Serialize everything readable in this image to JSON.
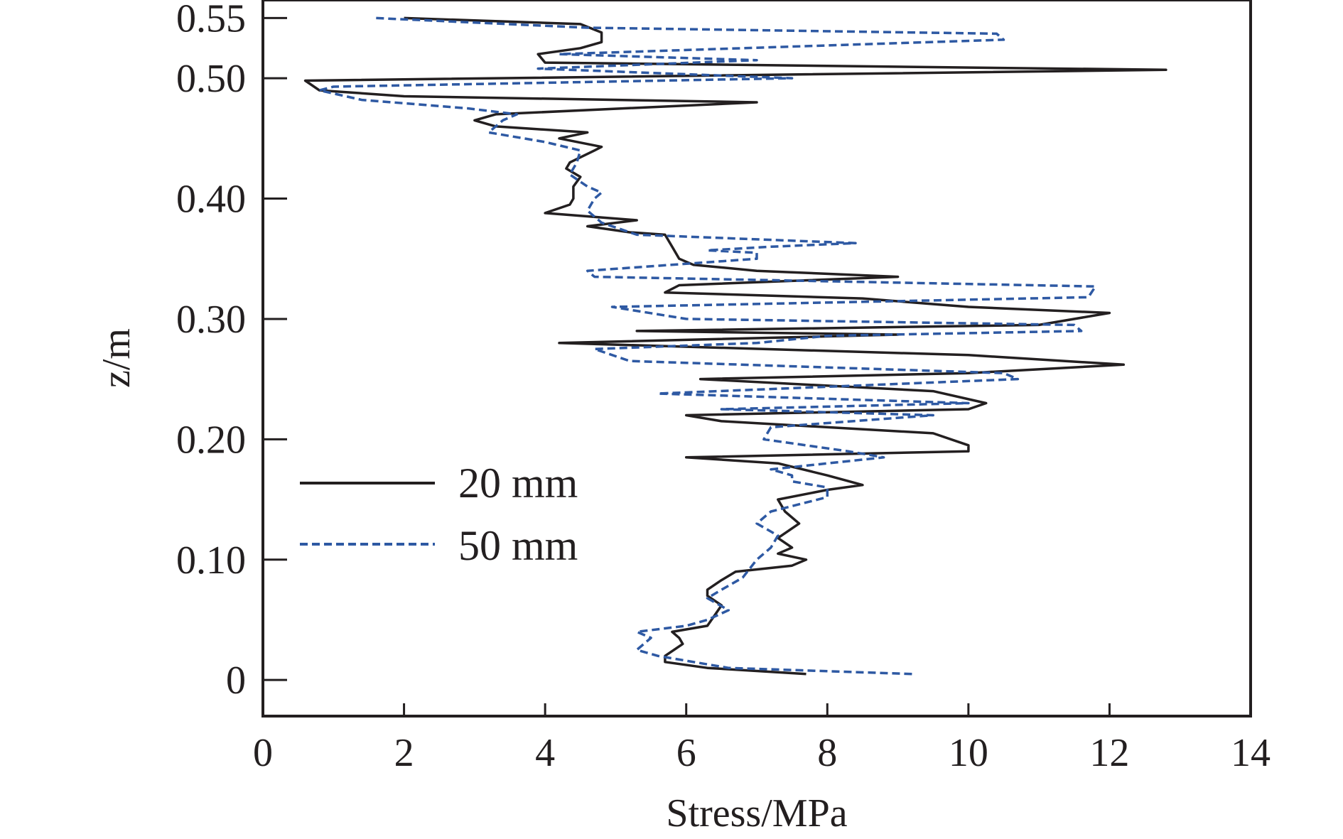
{
  "chart_data": {
    "type": "line",
    "xlabel": "Stress/MPa",
    "ylabel": "z/m",
    "xlim": [
      0,
      14
    ],
    "ylim": [
      -0.03,
      0.565
    ],
    "x_ticks": [
      0,
      2,
      4,
      6,
      8,
      10,
      12,
      14
    ],
    "x_tick_labels": [
      "0",
      "2",
      "4",
      "6",
      "8",
      "10",
      "12",
      "14"
    ],
    "y_ticks": [
      0,
      0.1,
      0.2,
      0.3,
      0.4,
      0.5,
      0.55
    ],
    "y_tick_labels": [
      "0",
      "0.10",
      "0.20",
      "0.30",
      "0.40",
      "0.50",
      "0.55"
    ],
    "legend_position": "middle-left",
    "series": [
      {
        "name": "20 mm",
        "color": "#231f20",
        "style": "solid",
        "points": [
          [
            7.7,
            0.005
          ],
          [
            6.3,
            0.01
          ],
          [
            5.7,
            0.015
          ],
          [
            5.7,
            0.02
          ],
          [
            5.95,
            0.03
          ],
          [
            5.9,
            0.035
          ],
          [
            5.8,
            0.04
          ],
          [
            6.3,
            0.045
          ],
          [
            6.5,
            0.062
          ],
          [
            6.3,
            0.07
          ],
          [
            6.3,
            0.075
          ],
          [
            6.5,
            0.083
          ],
          [
            6.7,
            0.09
          ],
          [
            7.5,
            0.095
          ],
          [
            7.7,
            0.1
          ],
          [
            7.3,
            0.105
          ],
          [
            7.5,
            0.11
          ],
          [
            7.3,
            0.118
          ],
          [
            7.6,
            0.13
          ],
          [
            7.4,
            0.14
          ],
          [
            7.3,
            0.15
          ],
          [
            8.0,
            0.158
          ],
          [
            8.5,
            0.162
          ],
          [
            8.0,
            0.17
          ],
          [
            7.3,
            0.18
          ],
          [
            6.0,
            0.185
          ],
          [
            10.0,
            0.19
          ],
          [
            10.0,
            0.195
          ],
          [
            9.5,
            0.205
          ],
          [
            6.5,
            0.215
          ],
          [
            6.0,
            0.22
          ],
          [
            10.0,
            0.225
          ],
          [
            10.25,
            0.23
          ],
          [
            9.5,
            0.24
          ],
          [
            6.2,
            0.25
          ],
          [
            10.0,
            0.255
          ],
          [
            12.2,
            0.262
          ],
          [
            10.0,
            0.27
          ],
          [
            4.2,
            0.28
          ],
          [
            9.0,
            0.287
          ],
          [
            5.3,
            0.29
          ],
          [
            11.0,
            0.295
          ],
          [
            12.0,
            0.305
          ],
          [
            10.0,
            0.31
          ],
          [
            8.5,
            0.317
          ],
          [
            5.7,
            0.322
          ],
          [
            5.9,
            0.328
          ],
          [
            9.0,
            0.335
          ],
          [
            7.0,
            0.34
          ],
          [
            6.1,
            0.345
          ],
          [
            5.9,
            0.35
          ],
          [
            5.8,
            0.36
          ],
          [
            5.7,
            0.37
          ],
          [
            5.2,
            0.372
          ],
          [
            4.6,
            0.377
          ],
          [
            5.3,
            0.382
          ],
          [
            4.0,
            0.388
          ],
          [
            4.35,
            0.395
          ],
          [
            4.4,
            0.4
          ],
          [
            4.4,
            0.41
          ],
          [
            4.5,
            0.418
          ],
          [
            4.3,
            0.425
          ],
          [
            4.35,
            0.43
          ],
          [
            4.7,
            0.44
          ],
          [
            4.8,
            0.443
          ],
          [
            4.2,
            0.45
          ],
          [
            4.6,
            0.455
          ],
          [
            3.3,
            0.46
          ],
          [
            3.0,
            0.465
          ],
          [
            3.3,
            0.47
          ],
          [
            7.0,
            0.48
          ],
          [
            2.0,
            0.485
          ],
          [
            0.8,
            0.49
          ],
          [
            0.6,
            0.498
          ],
          [
            12.8,
            0.507
          ],
          [
            4.0,
            0.513
          ],
          [
            3.9,
            0.52
          ],
          [
            4.5,
            0.525
          ],
          [
            4.8,
            0.53
          ],
          [
            4.8,
            0.538
          ],
          [
            4.5,
            0.545
          ],
          [
            2.0,
            0.55
          ]
        ]
      },
      {
        "name": "50 mm",
        "color": "#2e59a3",
        "style": "dashed",
        "points": [
          [
            9.2,
            0.005
          ],
          [
            6.6,
            0.01
          ],
          [
            5.6,
            0.02
          ],
          [
            5.3,
            0.025
          ],
          [
            5.5,
            0.035
          ],
          [
            5.3,
            0.04
          ],
          [
            6.0,
            0.045
          ],
          [
            6.3,
            0.05
          ],
          [
            6.6,
            0.058
          ],
          [
            6.3,
            0.068
          ],
          [
            6.5,
            0.075
          ],
          [
            6.8,
            0.085
          ],
          [
            7.0,
            0.1
          ],
          [
            7.2,
            0.11
          ],
          [
            7.3,
            0.12
          ],
          [
            7.0,
            0.13
          ],
          [
            7.2,
            0.14
          ],
          [
            8.0,
            0.152
          ],
          [
            8.0,
            0.16
          ],
          [
            7.5,
            0.165
          ],
          [
            7.5,
            0.17
          ],
          [
            7.2,
            0.175
          ],
          [
            8.8,
            0.185
          ],
          [
            8.3,
            0.19
          ],
          [
            7.1,
            0.2
          ],
          [
            7.2,
            0.21
          ],
          [
            9.5,
            0.22
          ],
          [
            6.5,
            0.225
          ],
          [
            10.0,
            0.23
          ],
          [
            5.6,
            0.238
          ],
          [
            10.7,
            0.25
          ],
          [
            10.5,
            0.255
          ],
          [
            5.2,
            0.265
          ],
          [
            4.7,
            0.275
          ],
          [
            7.0,
            0.28
          ],
          [
            8.0,
            0.286
          ],
          [
            11.6,
            0.29
          ],
          [
            11.5,
            0.295
          ],
          [
            6.0,
            0.3
          ],
          [
            4.95,
            0.31
          ],
          [
            11.7,
            0.318
          ],
          [
            11.8,
            0.327
          ],
          [
            4.7,
            0.335
          ],
          [
            4.6,
            0.34
          ],
          [
            7.0,
            0.35
          ],
          [
            7.0,
            0.355
          ],
          [
            6.3,
            0.357
          ],
          [
            7.2,
            0.36
          ],
          [
            8.4,
            0.363
          ],
          [
            5.3,
            0.37
          ],
          [
            4.8,
            0.38
          ],
          [
            4.6,
            0.39
          ],
          [
            4.7,
            0.4
          ],
          [
            4.8,
            0.405
          ],
          [
            4.6,
            0.41
          ],
          [
            4.35,
            0.42
          ],
          [
            4.45,
            0.43
          ],
          [
            4.5,
            0.44
          ],
          [
            4.0,
            0.447
          ],
          [
            3.2,
            0.455
          ],
          [
            3.4,
            0.465
          ],
          [
            3.6,
            0.47
          ],
          [
            2.9,
            0.475
          ],
          [
            1.4,
            0.482
          ],
          [
            0.8,
            0.49
          ],
          [
            1.0,
            0.493
          ],
          [
            7.5,
            0.5
          ],
          [
            3.9,
            0.508
          ],
          [
            7.0,
            0.515
          ],
          [
            4.2,
            0.52
          ],
          [
            10.5,
            0.532
          ],
          [
            10.4,
            0.537
          ],
          [
            4.6,
            0.542
          ],
          [
            1.6,
            0.55
          ]
        ]
      }
    ]
  }
}
